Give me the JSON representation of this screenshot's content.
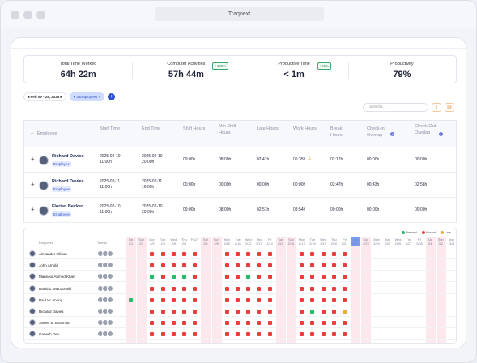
{
  "window": {
    "title": "Traqnext"
  },
  "stats": [
    {
      "label": "Total Time Worked",
      "value": "64h 22m",
      "badge": ""
    },
    {
      "label": "Computer Activities",
      "value": "57h 44m",
      "badge": "+108%"
    },
    {
      "label": "Productive Time",
      "value": "< 1m",
      "badge": "+96%"
    },
    {
      "label": "Productivity",
      "value": "79%",
      "badge": ""
    }
  ],
  "filters": {
    "date_range": "Feb 09  -  28, 2025",
    "employees": "3 Employees"
  },
  "search": {
    "placeholder": "Search..."
  },
  "table": {
    "columns": [
      "Employee",
      "Start Time",
      "End Time",
      "Shift Hours",
      "Min Shift Hours",
      "Late Hours",
      "Work Hours",
      "Break Hours",
      "Check-in Overlap",
      "Check-Out Overlap"
    ],
    "rows": [
      {
        "name": "Richard Davies",
        "role": "Employee",
        "start": "2025-02-10 11:00h",
        "end": "2025-02-10 20:00h",
        "shift": "09:00h",
        "min_shift": "08:00h",
        "late": "02:41h",
        "work": "05:35h",
        "break": "02:17h",
        "checkin": "00:00h",
        "checkout": "00:00h",
        "warn": true
      },
      {
        "name": "Richard Davies",
        "role": "Employee",
        "start": "2025-02-11 11:00h",
        "end": "2025-02-11 16:00h",
        "shift": "00:00h",
        "min_shift": "00:00h",
        "late": "00:00h",
        "work": "00:00h",
        "break": "02:47h",
        "checkin": "00:43h",
        "checkout": "02:58h",
        "warn": false
      },
      {
        "name": "Florian Becker",
        "role": "Employee",
        "start": "2025-02-10 11:00h",
        "end": "2025-02-10 20:00h",
        "shift": "09:00h",
        "min_shift": "08:00h",
        "late": "02:51h",
        "work": "08:54h",
        "break": "00:00h",
        "checkin": "00:00h",
        "checkout": "00:00h",
        "warn": false
      }
    ]
  },
  "attendance": {
    "header_employee": "Employee",
    "header_teams": "Teams",
    "legend": [
      {
        "label": "Present",
        "color": "#1fbf6a"
      },
      {
        "label": "Absent",
        "color": "#ee3b3b"
      },
      {
        "label": "Late",
        "color": "#f0a93a"
      }
    ],
    "days": [
      {
        "d": "Sat",
        "n": "2/1"
      },
      {
        "d": "Sun",
        "n": "2/2"
      },
      {
        "d": "Mon",
        "n": "2/3"
      },
      {
        "d": "Tue",
        "n": "2/4"
      },
      {
        "d": "Wed",
        "n": "2/5"
      },
      {
        "d": "Thu",
        "n": "2/6"
      },
      {
        "d": "Fr",
        "n": "2/7"
      },
      {
        "d": "Sat",
        "n": "2/8"
      },
      {
        "d": "Sun",
        "n": "2/9"
      },
      {
        "d": "Mon",
        "n": "2/10"
      },
      {
        "d": "Tue",
        "n": "2/11"
      },
      {
        "d": "Wed",
        "n": "2/12"
      },
      {
        "d": "Thu",
        "n": "2/13"
      },
      {
        "d": "Fri",
        "n": "2/14"
      },
      {
        "d": "Sat",
        "n": "2/15"
      },
      {
        "d": "Sun",
        "n": "2/16"
      },
      {
        "d": "Mon",
        "n": "2/17"
      },
      {
        "d": "Tue",
        "n": "2/18"
      },
      {
        "d": "Wed",
        "n": "2/19"
      },
      {
        "d": "Thu",
        "n": "2/20"
      },
      {
        "d": "Fri",
        "n": "2/21"
      },
      {
        "d": "Sat",
        "n": "2/22"
      },
      {
        "d": "Sun",
        "n": "2/23"
      },
      {
        "d": "Mon",
        "n": "2/24"
      },
      {
        "d": "Tue",
        "n": "2/25"
      },
      {
        "d": "Wed",
        "n": "2/26"
      },
      {
        "d": "Thu",
        "n": "2/27"
      },
      {
        "d": "Fri",
        "n": "2/28"
      },
      {
        "d": "Sat",
        "n": "3/1"
      },
      {
        "d": "Sun",
        "n": "3/2"
      },
      {
        "d": "Mon",
        "n": "3/3"
      }
    ],
    "employees": [
      {
        "name": "Alexander Ellison",
        "cells": "  aaaaa  aaaaa  aaaaa        "
      },
      {
        "name": "John Arnold",
        "cells": "  aaaaa  aaaaa  aaaaa        "
      },
      {
        "name": "Mansoor Ahmed Khan",
        "cells": "  pappa  aapaa  aaaaa        "
      },
      {
        "name": "David Z. Macdonald",
        "cells": "  aaaaa  aaaaa  aaaaa        "
      },
      {
        "name": "Paul W. Young",
        "cells": "p aaaaa  aaaaa  aaaaa        "
      },
      {
        "name": "Richard Davies",
        "cells": "  aaaaa  aaaaa  apaal        "
      },
      {
        "name": "James E. Bushman",
        "cells": "  aaaaa  aaaaa  aaaaa        "
      },
      {
        "name": "Ganesh Dev",
        "cells": "  aaaaa  aaaaa  aaaaa        "
      }
    ]
  }
}
